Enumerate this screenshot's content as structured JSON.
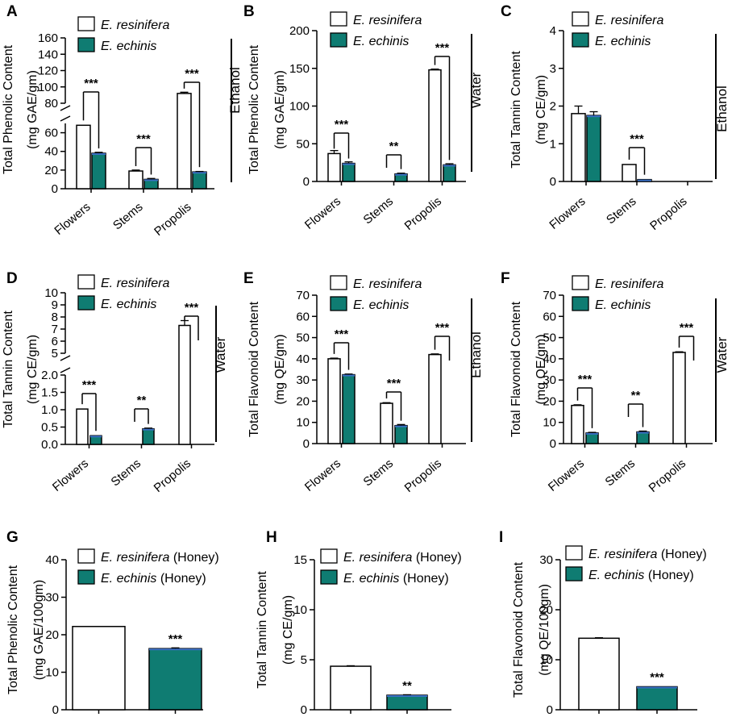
{
  "colors": {
    "resinifera": "#ffffff",
    "echinis": "#0f7c72",
    "echinis_top": "#3a6fc4",
    "label": "#b5562a"
  },
  "chart_data": [
    {
      "panel": "A",
      "type": "bar",
      "ylabel": [
        "Total Phenolic Content",
        "(mg GAE/gm)"
      ],
      "categories": [
        "Flowers",
        "Stems",
        "Propolis"
      ],
      "series": [
        {
          "name": "E. resinifera",
          "values": [
            68,
            19,
            92
          ],
          "errors": [
            0,
            1,
            1.5
          ]
        },
        {
          "name": "E. echinis",
          "values": [
            38,
            10,
            18
          ],
          "errors": [
            1,
            1,
            0.5
          ]
        }
      ],
      "yticks": [
        0,
        20,
        40,
        60,
        80,
        100,
        120,
        140,
        160
      ],
      "sig": [
        "***",
        "***",
        "***"
      ],
      "side_label": "Ethanol"
    },
    {
      "panel": "B",
      "type": "bar",
      "ylabel": [
        "Total Phenolic Content",
        "(mg GAE/gm)"
      ],
      "categories": [
        "Flowers",
        "Stems",
        "Propolis"
      ],
      "series": [
        {
          "name": "E. resinifera",
          "values": [
            37,
            0,
            148
          ],
          "errors": [
            4,
            0,
            1
          ]
        },
        {
          "name": "E. echinis",
          "values": [
            24,
            10,
            22
          ],
          "errors": [
            2,
            1,
            1.5
          ]
        }
      ],
      "yticks": [
        0,
        50,
        100,
        150,
        200
      ],
      "ylim": [
        0,
        200
      ],
      "sig": [
        "***",
        "**",
        "***"
      ],
      "side_label": "Water"
    },
    {
      "panel": "C",
      "type": "bar",
      "ylabel": [
        "Total Tannin Content",
        "(mg CE/gm)"
      ],
      "categories": [
        "Flowers",
        "Stems",
        "Propolis"
      ],
      "series": [
        {
          "name": "E. resinifera",
          "values": [
            1.8,
            0.45,
            0
          ],
          "errors": [
            0.2,
            0,
            0
          ]
        },
        {
          "name": "E. echinis",
          "values": [
            1.75,
            0.05,
            0
          ],
          "errors": [
            0.1,
            0.01,
            0
          ]
        }
      ],
      "yticks": [
        0,
        1,
        2,
        3,
        4
      ],
      "ylim": [
        0,
        4
      ],
      "sig": [
        "",
        "***",
        ""
      ],
      "side_label": "Ethanol"
    },
    {
      "panel": "D",
      "type": "bar",
      "ylabel": [
        "Total Tannin Content",
        "(mg CE/gm)"
      ],
      "categories": [
        "Flowers",
        "Stems",
        "Propolis"
      ],
      "series": [
        {
          "name": "E. resinifera",
          "values": [
            1.02,
            0,
            7.3
          ],
          "errors": [
            0,
            0,
            0.4
          ]
        },
        {
          "name": "E. echinis",
          "values": [
            0.25,
            0.45,
            0
          ],
          "errors": [
            0.01,
            0.02,
            0
          ]
        }
      ],
      "yticks": [
        0.0,
        0.5,
        1.0,
        1.5,
        2.0,
        5,
        6,
        7,
        8,
        9,
        10
      ],
      "sig": [
        "***",
        "**",
        "***"
      ],
      "side_label": "Water"
    },
    {
      "panel": "E",
      "type": "bar",
      "ylabel": [
        "Total Flavonoid Content",
        "(mg QE/gm)"
      ],
      "categories": [
        "Flowers",
        "Stems",
        "Propolis"
      ],
      "series": [
        {
          "name": "E. resinifera",
          "values": [
            40,
            19,
            42
          ],
          "errors": [
            0.3,
            0.3,
            0.3
          ]
        },
        {
          "name": "E. echinis",
          "values": [
            32.5,
            8.5,
            0
          ],
          "errors": [
            0.3,
            0.5,
            0
          ]
        }
      ],
      "yticks": [
        0,
        10,
        20,
        30,
        40,
        50,
        60,
        70
      ],
      "ylim": [
        0,
        70
      ],
      "sig": [
        "***",
        "***",
        "***"
      ],
      "side_label": "Ethanol"
    },
    {
      "panel": "F",
      "type": "bar",
      "ylabel": [
        "Total Flavonoid Content",
        "(mg QE/gm)"
      ],
      "categories": [
        "Flowers",
        "Stems",
        "Propolis"
      ],
      "series": [
        {
          "name": "E. resinifera",
          "values": [
            18,
            0,
            43
          ],
          "errors": [
            0.3,
            0,
            0.3
          ]
        },
        {
          "name": "E. echinis",
          "values": [
            5,
            5.5,
            0
          ],
          "errors": [
            0.3,
            0.4,
            0
          ]
        }
      ],
      "yticks": [
        0,
        10,
        20,
        30,
        40,
        50,
        60,
        70
      ],
      "ylim": [
        0,
        70
      ],
      "sig": [
        "***",
        "**",
        "***"
      ],
      "side_label": "Water"
    },
    {
      "panel": "G",
      "type": "bar",
      "ylabel": [
        "Total Phenolic Content",
        "(mg GAE/100gm)"
      ],
      "categories": [
        "E. resinifera (Honey)",
        "E. echinis (Honey)"
      ],
      "values": [
        22.2,
        16.3
      ],
      "errors": [
        0.1,
        0.2
      ],
      "yticks": [
        0,
        10,
        20,
        30,
        40
      ],
      "ylim": [
        0,
        40
      ],
      "sig": "***"
    },
    {
      "panel": "H",
      "type": "bar",
      "ylabel": [
        "Total Tannin Content",
        "(mg CE/gm)"
      ],
      "categories": [
        "E. resinifera (Honey)",
        "E. echinis (Honey)"
      ],
      "values": [
        4.35,
        1.45
      ],
      "errors": [
        0.05,
        0.05
      ],
      "yticks": [
        0,
        5,
        10,
        15
      ],
      "ylim": [
        0,
        15
      ],
      "sig": "**"
    },
    {
      "panel": "I",
      "type": "bar",
      "ylabel": [
        "Total Flavonoid Content",
        "(mg QE/100gm)"
      ],
      "categories": [
        "E. resinifera (Honey)",
        "E. echinis (Honey)"
      ],
      "values": [
        14.3,
        4.6
      ],
      "errors": [
        0.1,
        0.05
      ],
      "yticks": [
        0,
        10,
        20,
        30
      ],
      "ylim": [
        0,
        30
      ],
      "sig": "***"
    }
  ]
}
